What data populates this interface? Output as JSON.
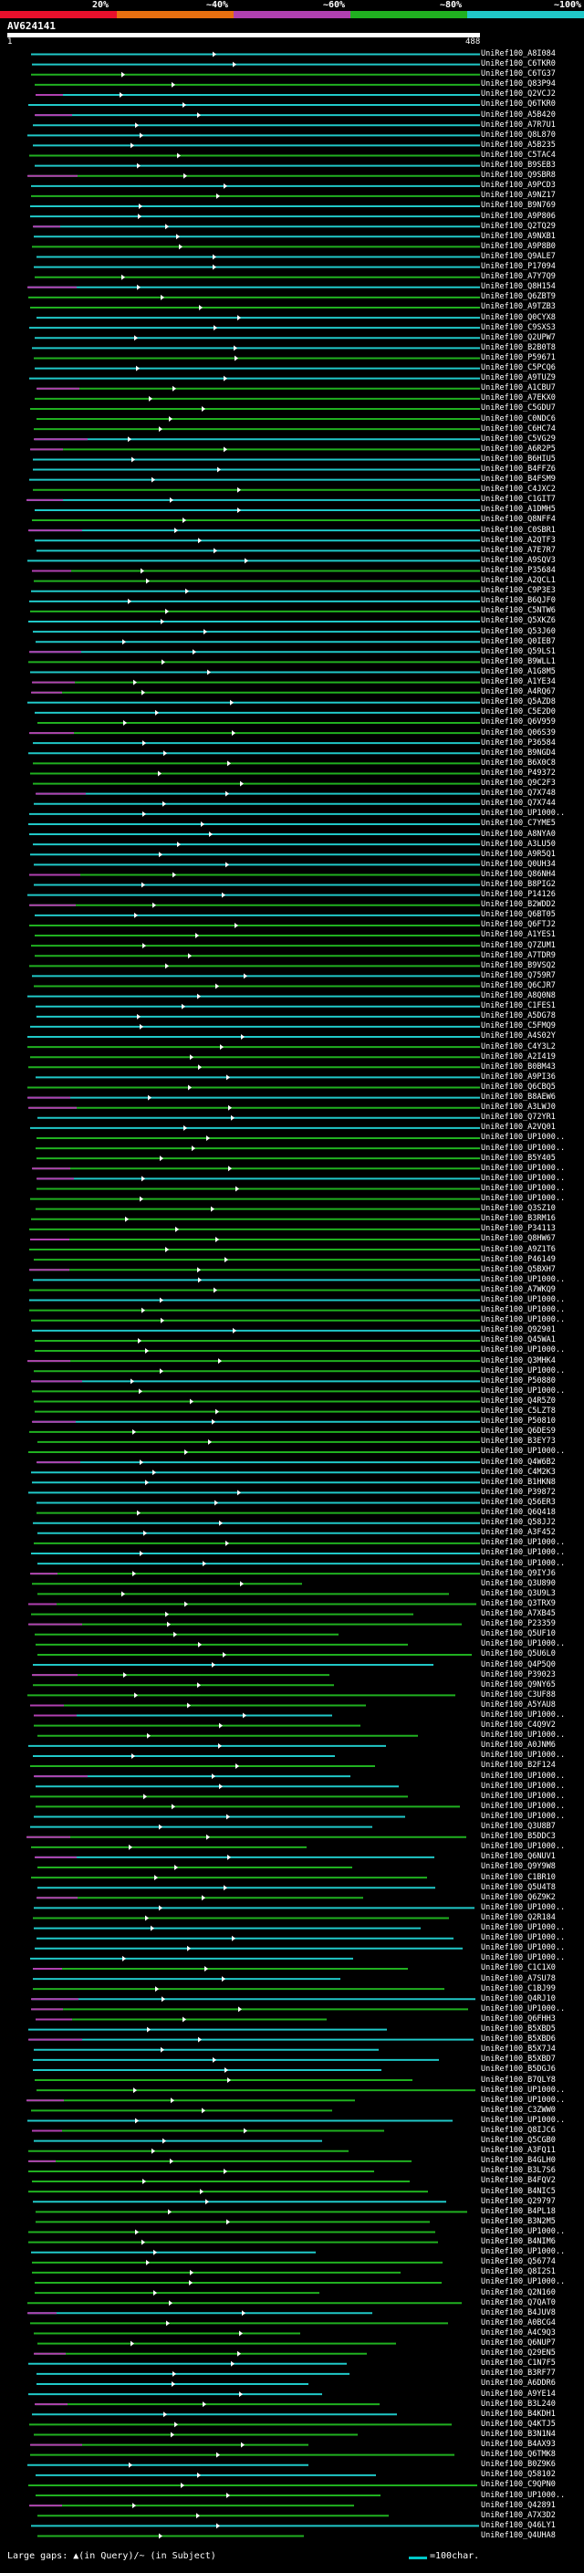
{
  "scale": {
    "colors": [
      "#e8102c",
      "#e87010",
      "#b040b0",
      "#20b020",
      "#20c8c8"
    ],
    "labels": [
      "20%",
      "~40%",
      "~60%",
      "~80%",
      "~100%"
    ]
  },
  "query": {
    "name": "AV624141",
    "start": "1",
    "end": "488"
  },
  "hits_labels": [
    "UniRef100_A8I084",
    "UniRef100_C6TKR0",
    "UniRef100_C6TG37",
    "UniRef100_Q83P94",
    "UniRef100_Q2VCJ2",
    "UniRef100_Q6TKR0",
    "UniRef100_A5B420",
    "UniRef100_A7R7U1",
    "UniRef100_Q8L870",
    "UniRef100_A5B235",
    "UniRef100_C5TAC4",
    "UniRef100_B9SEB3",
    "UniRef100_Q9SBR8",
    "UniRef100_A9PCD3",
    "UniRef100_A9NZ17",
    "UniRef100_B9N769",
    "UniRef100_A9P806",
    "UniRef100_Q2TQ29",
    "UniRef100_A9NXB1",
    "UniRef100_A9P8B0",
    "UniRef100_Q9ALE7",
    "UniRef100_P17094",
    "UniRef100_A7Y7Q9",
    "UniRef100_Q8H154",
    "UniRef100_Q6ZBT9",
    "UniRef100_A9TZB3",
    "UniRef100_Q0CYX8",
    "UniRef100_C9SXS3",
    "UniRef100_Q2UPW7",
    "UniRef100_B2B0T8",
    "UniRef100_P59671",
    "UniRef100_C5PCQ6",
    "UniRef100_A9TUZ9",
    "UniRef100_A1CBU7",
    "UniRef100_A7EKX0",
    "UniRef100_C5GDU7",
    "UniRef100_C0NDC6",
    "UniRef100_C6HC74",
    "UniRef100_C5VG29",
    "UniRef100_A6R2P5",
    "UniRef100_B6HIU5",
    "UniRef100_B4FFZ6",
    "UniRef100_B4FSM9",
    "UniRef100_C4JXC2",
    "UniRef100_C1GIT7",
    "UniRef100_A1DMH5",
    "UniRef100_Q8NFF4",
    "UniRef100_C0SBR1",
    "UniRef100_A2QTF3",
    "UniRef100_A7E7R7",
    "UniRef100_A9SQV3",
    "UniRef100_P35684",
    "UniRef100_A2QCL1",
    "UniRef100_C9P3E3",
    "UniRef100_B6QJF0",
    "UniRef100_C5NTW6",
    "UniRef100_Q5XKZ6",
    "UniRef100_Q53J60",
    "UniRef100_Q0IEB7",
    "UniRef100_Q59LS1",
    "UniRef100_B9WLL1",
    "UniRef100_A1G8M5",
    "UniRef100_A1YE34",
    "UniRef100_A4RQ67",
    "UniRef100_Q5AZD8",
    "UniRef100_C5E2D0",
    "UniRef100_Q6V959",
    "UniRef100_Q06S39",
    "UniRef100_P36584",
    "UniRef100_B9NGD4",
    "UniRef100_B6X0C8",
    "UniRef100_P49372",
    "UniRef100_Q9C2F3",
    "UniRef100_Q7X748",
    "UniRef100_Q7X744",
    "UniRef100_UP1000..",
    "UniRef100_C7YME5",
    "UniRef100_A8NYA0",
    "UniRef100_A3LU50",
    "UniRef100_A9R5Q1",
    "UniRef100_Q0UH34",
    "UniRef100_Q86NH4",
    "UniRef100_B8PIG2",
    "UniRef100_P14126",
    "UniRef100_B2WDD2",
    "UniRef100_Q6BT05",
    "UniRef100_Q6FTJ2",
    "UniRef100_A1YES1",
    "UniRef100_Q7ZUM1",
    "UniRef100_A7TDR9",
    "UniRef100_B9VSQ2",
    "UniRef100_Q759R7",
    "UniRef100_Q6CJR7",
    "UniRef100_A8Q0N8",
    "UniRef100_C1FES1",
    "UniRef100_A5DG78",
    "UniRef100_C5FMQ9",
    "UniRef100_A4S02Y",
    "UniRef100_C4Y3L2",
    "UniRef100_A2I419",
    "UniRef100_B0BM43",
    "UniRef100_A9PI36",
    "UniRef100_Q6CBQ5",
    "UniRef100_B8AEW6",
    "UniRef100_A3LWJ0",
    "UniRef100_Q72YR1",
    "UniRef100_A2VQ01",
    "UniRef100_UP1000..",
    "UniRef100_UP1000..",
    "UniRef100_B5Y405",
    "UniRef100_UP1000..",
    "UniRef100_UP1000..",
    "UniRef100_UP1000..",
    "UniRef100_UP1000..",
    "UniRef100_Q3SZ10",
    "UniRef100_B3RM16",
    "UniRef100_P34113",
    "UniRef100_Q8HW67",
    "UniRef100_A9Z1T6",
    "UniRef100_P46149",
    "UniRef100_Q5BXH7",
    "UniRef100_UP1000..",
    "UniRef100_A7WKQ9",
    "UniRef100_UP1000..",
    "UniRef100_UP1000..",
    "UniRef100_UP1000..",
    "UniRef100_Q92901",
    "UniRef100_Q45WA1",
    "UniRef100_UP1000..",
    "UniRef100_Q3MHK4",
    "UniRef100_UP1000..",
    "UniRef100_P50880",
    "UniRef100_UP1000..",
    "UniRef100_Q4R5Z0",
    "UniRef100_C5LZT8",
    "UniRef100_P50810",
    "UniRef100_Q6DES9",
    "UniRef100_B3EY73",
    "UniRef100_UP1000..",
    "UniRef100_Q4W6B2",
    "UniRef100_C4M2K3",
    "UniRef100_B1HKN8",
    "UniRef100_P39872",
    "UniRef100_Q56ER3",
    "UniRef100_Q6Q418",
    "UniRef100_Q58JJ2",
    "UniRef100_A3F452",
    "UniRef100_UP1000..",
    "UniRef100_UP1000..",
    "UniRef100_UP1000..",
    "UniRef100_Q9IYJ6",
    "UniRef100_Q3U890",
    "UniRef100_Q3U9L3",
    "UniRef100_Q3TRX9",
    "UniRef100_A7XB45",
    "UniRef100_P23359",
    "UniRef100_Q5UF10",
    "UniRef100_UP1000..",
    "UniRef100_Q5U6L0",
    "UniRef100_Q4P5Q0",
    "UniRef100_P39023",
    "UniRef100_Q9NY65",
    "UniRef100_C3UF88",
    "UniRef100_A5YAU8",
    "UniRef100_UP1000..",
    "UniRef100_C4Q9V2",
    "UniRef100_UP1000..",
    "UniRef100_A0JNM6",
    "UniRef100_UP1000..",
    "UniRef100_B2F124",
    "UniRef100_UP1000..",
    "UniRef100_UP1000..",
    "UniRef100_UP1000..",
    "UniRef100_UP1000..",
    "UniRef100_UP1000..",
    "UniRef100_Q3U8B7",
    "UniRef100_B5DDC3",
    "UniRef100_UP1000..",
    "UniRef100_Q6NUV1",
    "UniRef100_Q9Y9W8",
    "UniRef100_C1BR10",
    "UniRef100_Q5U4T8",
    "UniRef100_Q6Z9K2",
    "UniRef100_UP1000..",
    "UniRef100_Q2R184",
    "UniRef100_UP1000..",
    "UniRef100_UP1000..",
    "UniRef100_UP1000..",
    "UniRef100_UP1000..",
    "UniRef100_C1C1X0",
    "UniRef100_A7SU78",
    "UniRef100_C1BJ99",
    "UniRef100_Q4RJ10",
    "UniRef100_UP1000..",
    "UniRef100_Q6FHH3",
    "UniRef100_B5XBD5",
    "UniRef100_B5XBD6",
    "UniRef100_B5X7J4",
    "UniRef100_B5XBD7",
    "UniRef100_B5DGJ6",
    "UniRef100_B7QLY8",
    "UniRef100_UP1000..",
    "UniRef100_UP1000..",
    "UniRef100_C3ZWW0",
    "UniRef100_UP1000..",
    "UniRef100_Q8IJC6",
    "UniRef100_Q5CGB0",
    "UniRef100_A3FQ11",
    "UniRef100_B4GLH0",
    "UniRef100_B3L7S6",
    "UniRef100_B4FQV2",
    "UniRef100_B4NIC5",
    "UniRef100_Q29797",
    "UniRef100_B4PL18",
    "UniRef100_B3N2M5",
    "UniRef100_UP1000..",
    "UniRef100_B4NIM6",
    "UniRef100_UP1000..",
    "UniRef100_Q56774",
    "UniRef100_Q8I2S1",
    "UniRef100_UP1000..",
    "UniRef100_Q2N160",
    "UniRef100_Q7QAT0",
    "UniRef100_B4JUV8",
    "UniRef100_A0BCG4",
    "UniRef100_A4C9Q3",
    "UniRef100_Q6NUP7",
    "UniRef100_Q29EN5",
    "UniRef100_C1N7F5",
    "UniRef100_B3RF77",
    "UniRef100_A6DDR6",
    "UniRef100_A9YE14",
    "UniRef100_B3L240",
    "UniRef100_B4KDH1",
    "UniRef100_Q4KTJ5",
    "UniRef100_B3N1N4",
    "UniRef100_B4AX93",
    "UniRef100_Q6TMK8",
    "UniRef100_B0Z9K6",
    "UniRef100_Q58102",
    "UniRef100_C9QPN0",
    "UniRef100_UP1000..",
    "UniRef100_Q42891",
    "UniRef100_A7X3D2",
    "UniRef100_Q46LY1",
    "UniRef100_Q4UHA8"
  ],
  "legend": {
    "text": "Large gaps: ▲(in Query)/~ (in Subject)",
    "scale": "=100char."
  }
}
